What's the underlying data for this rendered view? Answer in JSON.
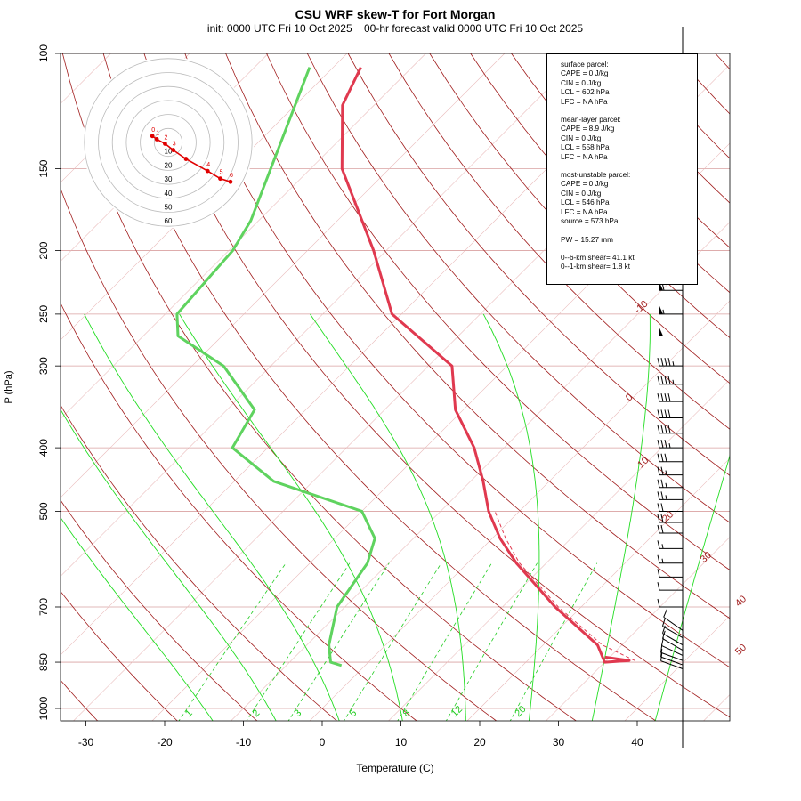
{
  "title": "CSU WRF skew-T for Fort Morgan",
  "subtitle": "init: 0000 UTC Fri 10 Oct 2025    00-hr forecast valid 0000 UTC Fri 10 Oct 2025",
  "colors": {
    "isotherm": "#a11d1d",
    "dry_adiabat": "#a11d1d",
    "moist_adiabat": "#22dd22",
    "mixing_ratio": "#22cc22",
    "temperature": "#e0394f",
    "dewpoint": "#5fd35f",
    "hodograph": "#e00000"
  },
  "parcel_info": {
    "surface": [
      "surface parcel:",
      "CAPE = 0 J/kg",
      "CIN = 0 J/kg",
      "LCL = 602 hPa",
      "LFC = NA hPa"
    ],
    "mean_layer": [
      "mean-layer parcel:",
      "CAPE = 8.9 J/kg",
      "CIN = 0 J/kg",
      "LCL = 558 hPa",
      "LFC = NA hPa"
    ],
    "most_unstable": [
      "most-unstable parcel:",
      "CAPE = 0 J/kg",
      "CIN = 0 J/kg",
      "LCL = 546 hPa",
      "LFC = NA hPa",
      "source = 573 hPa"
    ],
    "pw": "PW =  15.27 mm",
    "shear_06": "0--6-km shear= 41.1 kt",
    "shear_01": "0--1-km shear= 1.8 kt"
  },
  "chart_data": {
    "type": "line",
    "title": "CSU WRF skew-T for Fort Morgan",
    "xlabel": "Temperature (C)",
    "ylabel": "P (hPa)",
    "xlim": [
      -33,
      45
    ],
    "ylim": [
      1050,
      100
    ],
    "y_scale": "log",
    "x_ticks": [
      -30,
      -20,
      -10,
      0,
      10,
      20,
      30,
      40
    ],
    "y_ticks": [
      100,
      150,
      200,
      250,
      300,
      400,
      500,
      700,
      850,
      1000
    ],
    "isotherm_labels": [
      -10,
      0,
      10,
      20,
      30,
      40,
      50
    ],
    "mixing_ratio_labels": [
      "1",
      "2",
      "3",
      "5",
      "8",
      "12",
      "20"
    ],
    "series": [
      {
        "name": "temperature",
        "p": [
          835,
          845,
          850,
          800,
          700,
          600,
          550,
          500,
          450,
          400,
          350,
          300,
          250,
          200,
          150,
          120,
          105
        ],
        "t": [
          29.4,
          32.9,
          30.0,
          26.9,
          16.7,
          6.2,
          1.0,
          -3.9,
          -8.4,
          -13.8,
          -21.0,
          -27.0,
          -41.2,
          -51.6,
          -66.0,
          -74.0,
          -76.5
        ]
      },
      {
        "name": "parcel",
        "p": [
          845,
          800,
          700,
          600,
          550,
          500
        ],
        "t": [
          33.6,
          27.5,
          17.1,
          6.6,
          1.7,
          -3.1
        ]
      },
      {
        "name": "dewpoint",
        "p": [
          860,
          850,
          800,
          700,
          600,
          550,
          500,
          450,
          400,
          350,
          300,
          270,
          250,
          200,
          180,
          105
        ],
        "t": [
          -3.0,
          -4.8,
          -7.2,
          -11.0,
          -12.7,
          -14.9,
          -20.0,
          -35.0,
          -44.5,
          -46.5,
          -56.0,
          -65.6,
          -68.5,
          -69.5,
          -71.0,
          -83.0
        ]
      }
    ],
    "hodograph": {
      "rings": [
        "10",
        "20",
        "30",
        "40",
        "50",
        "60"
      ],
      "point_labels": [
        "0",
        "1",
        "2",
        "3",
        "4",
        "5",
        "6"
      ],
      "u": [
        -2.5,
        -1.8,
        -0.5,
        0.8,
        2.8,
        6.2,
        8.2,
        9.8
      ],
      "v": [
        1.0,
        0.5,
        -0.2,
        -1.2,
        -2.6,
        -4.5,
        -5.7,
        -6.2
      ]
    },
    "wind_barbs": [
      {
        "p": 105,
        "dir": 270,
        "kt": 40
      },
      {
        "p": 120,
        "dir": 270,
        "kt": 55
      },
      {
        "p": 130,
        "dir": 270,
        "kt": 65
      },
      {
        "p": 140,
        "dir": 270,
        "kt": 60
      },
      {
        "p": 150,
        "dir": 270,
        "kt": 75
      },
      {
        "p": 160,
        "dir": 270,
        "kt": 75
      },
      {
        "p": 170,
        "dir": 270,
        "kt": 85
      },
      {
        "p": 180,
        "dir": 270,
        "kt": 80
      },
      {
        "p": 190,
        "dir": 270,
        "kt": 90
      },
      {
        "p": 200,
        "dir": 270,
        "kt": 75
      },
      {
        "p": 210,
        "dir": 270,
        "kt": 70
      },
      {
        "p": 230,
        "dir": 270,
        "kt": 60
      },
      {
        "p": 250,
        "dir": 270,
        "kt": 55
      },
      {
        "p": 270,
        "dir": 270,
        "kt": 50
      },
      {
        "p": 300,
        "dir": 270,
        "kt": 45
      },
      {
        "p": 320,
        "dir": 270,
        "kt": 45
      },
      {
        "p": 340,
        "dir": 270,
        "kt": 40
      },
      {
        "p": 360,
        "dir": 270,
        "kt": 40
      },
      {
        "p": 380,
        "dir": 270,
        "kt": 40
      },
      {
        "p": 400,
        "dir": 270,
        "kt": 35
      },
      {
        "p": 420,
        "dir": 270,
        "kt": 30
      },
      {
        "p": 440,
        "dir": 270,
        "kt": 25
      },
      {
        "p": 460,
        "dir": 270,
        "kt": 25
      },
      {
        "p": 480,
        "dir": 270,
        "kt": 25
      },
      {
        "p": 500,
        "dir": 270,
        "kt": 20
      },
      {
        "p": 520,
        "dir": 270,
        "kt": 20
      },
      {
        "p": 540,
        "dir": 270,
        "kt": 20
      },
      {
        "p": 570,
        "dir": 270,
        "kt": 15
      },
      {
        "p": 600,
        "dir": 270,
        "kt": 15
      },
      {
        "p": 630,
        "dir": 270,
        "kt": 10
      },
      {
        "p": 660,
        "dir": 270,
        "kt": 10
      },
      {
        "p": 700,
        "dir": 270,
        "kt": 10
      },
      {
        "p": 760,
        "dir": 305,
        "kt": 10
      },
      {
        "p": 780,
        "dir": 300,
        "kt": 10
      },
      {
        "p": 800,
        "dir": 300,
        "kt": 10
      },
      {
        "p": 815,
        "dir": 300,
        "kt": 10
      },
      {
        "p": 830,
        "dir": 295,
        "kt": 10
      },
      {
        "p": 845,
        "dir": 290,
        "kt": 10
      },
      {
        "p": 858,
        "dir": 290,
        "kt": 10
      },
      {
        "p": 870,
        "dir": 290,
        "kt": 10
      }
    ]
  }
}
